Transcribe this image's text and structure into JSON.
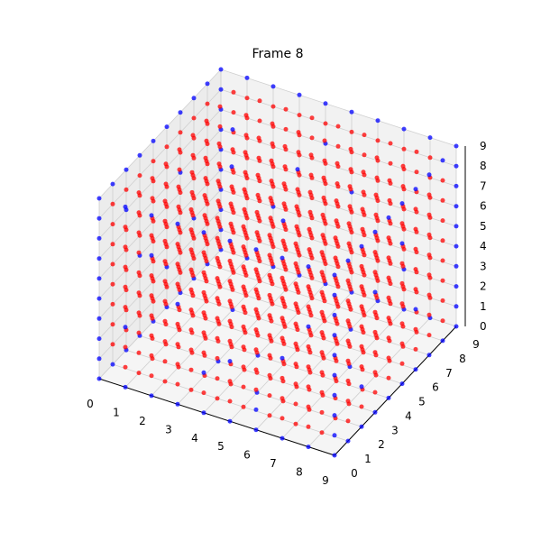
{
  "chart_data": {
    "type": "scatter3d",
    "title": "Frame 8",
    "xlabel": "",
    "ylabel": "",
    "zlabel": "",
    "xlim": [
      0,
      9
    ],
    "ylim": [
      0,
      9
    ],
    "zlim": [
      0,
      9
    ],
    "x_ticks": [
      "0",
      "1",
      "2",
      "3",
      "4",
      "5",
      "6",
      "7",
      "8",
      "9"
    ],
    "y_ticks": [
      "0",
      "1",
      "2",
      "3",
      "4",
      "5",
      "6",
      "7",
      "8",
      "9"
    ],
    "z_ticks": [
      "0",
      "1",
      "2",
      "3",
      "4",
      "5",
      "6",
      "7",
      "8",
      "9"
    ],
    "grid": true,
    "grid_size": 10,
    "colors": {
      "active": "#ff0000",
      "inactive": "#0000ff"
    },
    "point_state_rule": "edge-of-cube points blue, interior points mostly red (live cells of frame 8)",
    "blue_cells": [
      [
        0,
        0,
        0
      ],
      [
        0,
        0,
        9
      ],
      [
        0,
        9,
        0
      ],
      [
        0,
        9,
        9
      ],
      [
        9,
        0,
        0
      ],
      [
        9,
        0,
        9
      ],
      [
        9,
        9,
        0
      ],
      [
        9,
        9,
        9
      ],
      [
        0,
        0,
        1
      ],
      [
        0,
        0,
        2
      ],
      [
        0,
        0,
        3
      ],
      [
        0,
        0,
        4
      ],
      [
        0,
        0,
        5
      ],
      [
        0,
        0,
        6
      ],
      [
        0,
        0,
        7
      ],
      [
        0,
        0,
        8
      ],
      [
        1,
        0,
        0
      ],
      [
        2,
        0,
        0
      ],
      [
        3,
        0,
        0
      ],
      [
        4,
        0,
        0
      ],
      [
        5,
        0,
        0
      ],
      [
        6,
        0,
        0
      ],
      [
        7,
        0,
        0
      ],
      [
        8,
        0,
        0
      ],
      [
        9,
        1,
        0
      ],
      [
        9,
        2,
        0
      ],
      [
        9,
        3,
        0
      ],
      [
        9,
        4,
        0
      ],
      [
        9,
        5,
        0
      ],
      [
        9,
        6,
        0
      ],
      [
        9,
        7,
        0
      ],
      [
        9,
        8,
        0
      ],
      [
        9,
        9,
        1
      ],
      [
        9,
        9,
        2
      ],
      [
        9,
        9,
        3
      ],
      [
        9,
        9,
        4
      ],
      [
        9,
        9,
        5
      ],
      [
        9,
        9,
        6
      ],
      [
        9,
        9,
        7
      ],
      [
        9,
        9,
        8
      ],
      [
        0,
        1,
        9
      ],
      [
        0,
        2,
        9
      ],
      [
        0,
        3,
        9
      ],
      [
        0,
        4,
        9
      ],
      [
        0,
        5,
        9
      ],
      [
        0,
        6,
        9
      ],
      [
        0,
        7,
        9
      ],
      [
        0,
        8,
        9
      ],
      [
        1,
        9,
        9
      ],
      [
        2,
        9,
        9
      ],
      [
        3,
        9,
        9
      ],
      [
        4,
        9,
        9
      ],
      [
        5,
        9,
        9
      ],
      [
        6,
        9,
        9
      ],
      [
        7,
        9,
        9
      ],
      [
        8,
        9,
        9
      ],
      [
        3,
        0,
        5
      ],
      [
        5,
        0,
        3
      ],
      [
        2,
        0,
        7
      ],
      [
        6,
        0,
        1
      ],
      [
        4,
        0,
        2
      ],
      [
        7,
        0,
        4
      ],
      [
        1,
        0,
        3
      ],
      [
        8,
        0,
        6
      ],
      [
        3,
        3,
        0
      ],
      [
        5,
        2,
        0
      ],
      [
        7,
        5,
        0
      ],
      [
        2,
        6,
        0
      ],
      [
        6,
        7,
        0
      ],
      [
        4,
        4,
        0
      ],
      [
        0,
        3,
        4
      ],
      [
        0,
        5,
        2
      ],
      [
        0,
        6,
        6
      ],
      [
        0,
        2,
        7
      ],
      [
        0,
        7,
        3
      ],
      [
        2,
        9,
        3
      ],
      [
        5,
        9,
        5
      ],
      [
        7,
        9,
        2
      ],
      [
        4,
        9,
        7
      ],
      [
        9,
        3,
        6
      ],
      [
        9,
        6,
        3
      ],
      [
        9,
        2,
        2
      ],
      [
        9,
        5,
        7
      ],
      [
        3,
        4,
        9
      ],
      [
        6,
        2,
        9
      ],
      [
        2,
        6,
        9
      ],
      [
        5,
        5,
        9
      ]
    ]
  }
}
